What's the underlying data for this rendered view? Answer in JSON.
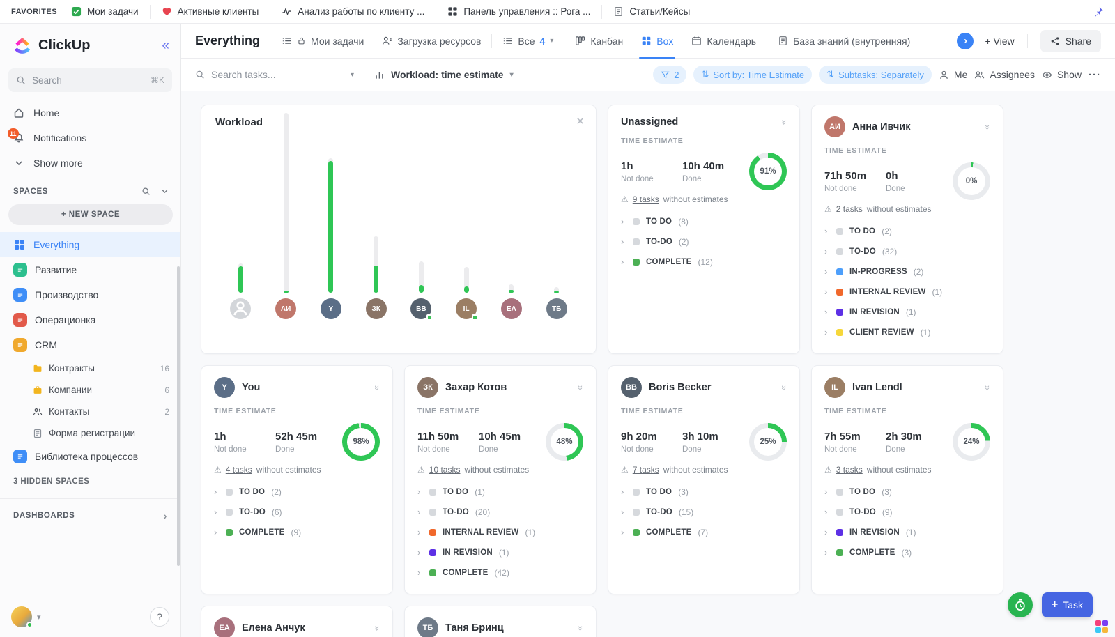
{
  "topbar": {
    "favorites_label": "FAVORITES",
    "items": [
      {
        "icon": "check-square",
        "label": "Мои задачи"
      },
      {
        "icon": "heart",
        "label": "Активные клиенты"
      },
      {
        "icon": "pulse",
        "label": "Анализ работы по клиенту ..."
      },
      {
        "icon": "dashboard",
        "label": "Панель управления :: Рога ..."
      },
      {
        "icon": "doc",
        "label": "Статьи/Кейсы"
      }
    ]
  },
  "sidebar": {
    "brand": "ClickUp",
    "search_placeholder": "Search",
    "search_shortcut": "⌘K",
    "nav": [
      {
        "icon": "home",
        "label": "Home"
      },
      {
        "icon": "bell",
        "label": "Notifications",
        "badge": "11"
      },
      {
        "icon": "chevron-down",
        "label": "Show more"
      }
    ],
    "spaces_title": "SPACES",
    "new_space_label": "+ NEW SPACE",
    "spaces": [
      {
        "label": "Everything",
        "active": true,
        "icon": "box"
      },
      {
        "label": "Развитие",
        "color": "#2cbf8e"
      },
      {
        "label": "Производство",
        "color": "#3f8ef7"
      },
      {
        "label": "Операционка",
        "color": "#e25a4a"
      },
      {
        "label": "CRM",
        "color": "#f0a92e",
        "children": [
          {
            "label": "Контракты",
            "count": "16",
            "icon": "folder"
          },
          {
            "label": "Компании",
            "count": "6",
            "icon": "briefcase"
          },
          {
            "label": "Контакты",
            "count": "2",
            "icon": "people"
          },
          {
            "label": "Форма регистрации",
            "icon": "form"
          }
        ]
      },
      {
        "label": "Библиотека процессов",
        "color": "#3f8ef7"
      }
    ],
    "hidden_spaces_label": "3 HIDDEN SPACES",
    "dashboards_label": "DASHBOARDS"
  },
  "header": {
    "title": "Everything",
    "tabs": [
      {
        "icon": "list",
        "lock": true,
        "label": "Мои задачи"
      },
      {
        "icon": "person-load",
        "label": "Загрузка ресурсов"
      },
      {
        "icon": "list",
        "label": "Все",
        "count": "4",
        "caret": true
      },
      {
        "icon": "board",
        "label": "Канбан"
      },
      {
        "icon": "box",
        "label": "Box",
        "active": true
      },
      {
        "icon": "calendar",
        "label": "Календарь"
      },
      {
        "icon": "doc",
        "label": "База знаний (внутренняя)"
      }
    ],
    "add_view_label": "+ View",
    "share_label": "Share"
  },
  "toolbar": {
    "search_placeholder": "Search tasks...",
    "mode_label": "Workload: time estimate",
    "filter_count": "2",
    "sort_label": "Sort by: Time Estimate",
    "subtasks_label": "Subtasks: Separately",
    "me_label": "Me",
    "assignees_label": "Assignees",
    "show_label": "Show",
    "more_label": "···"
  },
  "labels": {
    "time_estimate": "TIME ESTIMATE",
    "not_done": "Not done",
    "done": "Done",
    "without_estimates": "without estimates"
  },
  "workload": {
    "title": "Workload",
    "bars": [
      {
        "track": 42,
        "fill": 38
      },
      {
        "track": 258,
        "fill": 3
      },
      {
        "track": 193,
        "fill": 189
      },
      {
        "track": 81,
        "fill": 39
      },
      {
        "track": 45,
        "fill": 11
      },
      {
        "track": 37,
        "fill": 9
      },
      {
        "track": 12,
        "fill": 4
      },
      {
        "track": 8,
        "fill": 2
      }
    ],
    "avatars": [
      {
        "type": "group"
      },
      {
        "initials": "АИ",
        "color": "#c0776b"
      },
      {
        "initials": "Y",
        "color": "#5b6e87"
      },
      {
        "initials": "ЗК",
        "color": "#8a7466"
      },
      {
        "initials": "BB",
        "color": "#55616e",
        "badge": true
      },
      {
        "initials": "IL",
        "color": "#9b7e64",
        "badge": true
      },
      {
        "initials": "ЕА",
        "color": "#a8707c"
      },
      {
        "initials": "ТБ",
        "color": "#6e7a88"
      }
    ]
  },
  "cards": [
    {
      "name": "Unassigned",
      "percent": 91,
      "not_done": "1h",
      "done": "10h 40m",
      "tasks_link": "9 tasks",
      "statuses": [
        {
          "name": "TO DO",
          "count": "(8)",
          "color": "gray"
        },
        {
          "name": "TO-DO",
          "count": "(2)",
          "color": "gray"
        },
        {
          "name": "COMPLETE",
          "count": "(12)",
          "color": "green"
        }
      ]
    },
    {
      "name": "Анна Ивчик",
      "initials": "АИ",
      "avatar_color": "#c0776b",
      "percent": 0,
      "not_done": "71h 50m",
      "done": "0h",
      "tasks_link": "2 tasks",
      "statuses": [
        {
          "name": "TO DO",
          "count": "(2)",
          "color": "gray"
        },
        {
          "name": "TO-DO",
          "count": "(32)",
          "color": "gray"
        },
        {
          "name": "IN-PROGRESS",
          "count": "(2)",
          "color": "blue"
        },
        {
          "name": "INTERNAL REVIEW",
          "count": "(1)",
          "color": "orange"
        },
        {
          "name": "IN REVISION",
          "count": "(1)",
          "color": "purple"
        },
        {
          "name": "CLIENT REVIEW",
          "count": "(1)",
          "color": "yellow"
        }
      ]
    },
    {
      "name": "You",
      "initials": "Y",
      "avatar_color": "#5b6e87",
      "percent": 98,
      "not_done": "1h",
      "done": "52h 45m",
      "tasks_link": "4 tasks",
      "statuses": [
        {
          "name": "TO DO",
          "count": "(2)",
          "color": "gray"
        },
        {
          "name": "TO-DO",
          "count": "(6)",
          "color": "gray"
        },
        {
          "name": "COMPLETE",
          "count": "(9)",
          "color": "green"
        }
      ]
    },
    {
      "name": "Захар Котов",
      "initials": "ЗК",
      "avatar_color": "#8a7466",
      "percent": 48,
      "not_done": "11h 50m",
      "done": "10h 45m",
      "tasks_link": "10 tasks",
      "statuses": [
        {
          "name": "TO DO",
          "count": "(1)",
          "color": "gray"
        },
        {
          "name": "TO-DO",
          "count": "(20)",
          "color": "gray"
        },
        {
          "name": "INTERNAL REVIEW",
          "count": "(1)",
          "color": "orange"
        },
        {
          "name": "IN REVISION",
          "count": "(1)",
          "color": "purple"
        },
        {
          "name": "COMPLETE",
          "count": "(42)",
          "color": "green"
        }
      ]
    },
    {
      "name": "Boris Becker",
      "initials": "BB",
      "avatar_color": "#55616e",
      "percent": 25,
      "not_done": "9h 20m",
      "done": "3h 10m",
      "tasks_link": "7 tasks",
      "statuses": [
        {
          "name": "TO DO",
          "count": "(3)",
          "color": "gray"
        },
        {
          "name": "TO-DO",
          "count": "(15)",
          "color": "gray"
        },
        {
          "name": "COMPLETE",
          "count": "(7)",
          "color": "green"
        }
      ]
    },
    {
      "name": "Ivan Lendl",
      "initials": "IL",
      "avatar_color": "#9b7e64",
      "percent": 24,
      "not_done": "7h 55m",
      "done": "2h 30m",
      "tasks_link": "3 tasks",
      "statuses": [
        {
          "name": "TO DO",
          "count": "(3)",
          "color": "gray"
        },
        {
          "name": "TO-DO",
          "count": "(9)",
          "color": "gray"
        },
        {
          "name": "IN REVISION",
          "count": "(1)",
          "color": "purple"
        },
        {
          "name": "COMPLETE",
          "count": "(3)",
          "color": "green"
        }
      ]
    },
    {
      "name": "Елена Анчук",
      "initials": "ЕА",
      "avatar_color": "#a8707c",
      "partial": true
    },
    {
      "name": "Таня Бринц",
      "initials": "ТБ",
      "avatar_color": "#6e7a88",
      "partial": true
    }
  ],
  "fab": {
    "task_label": "Task"
  },
  "colors": {
    "accent": "#3a83f6",
    "green": "#2fc655",
    "donut_track": "#e9ebee",
    "status": {
      "gray": "#d6d9dd",
      "green": "#4cb054",
      "blue": "#4d9ffb",
      "orange": "#f0682c",
      "purple": "#5d30e5",
      "yellow": "#f6d73a"
    }
  }
}
